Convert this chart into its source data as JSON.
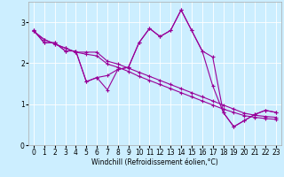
{
  "xlabel": "Windchill (Refroidissement éolien,°C)",
  "background_color": "#cceeff",
  "line_color": "#990099",
  "x": [
    0,
    1,
    2,
    3,
    4,
    5,
    6,
    7,
    8,
    9,
    10,
    11,
    12,
    13,
    14,
    15,
    16,
    17,
    18,
    19,
    20,
    21,
    22,
    23
  ],
  "series": [
    [
      2.8,
      2.5,
      2.5,
      2.3,
      2.3,
      1.55,
      1.65,
      1.35,
      1.85,
      1.9,
      2.5,
      2.85,
      2.65,
      2.8,
      3.3,
      2.8,
      2.3,
      2.15,
      0.8,
      0.45,
      0.6,
      0.75,
      0.85,
      0.8
    ],
    [
      2.8,
      2.5,
      2.5,
      2.3,
      2.3,
      1.55,
      1.65,
      1.7,
      1.85,
      1.9,
      2.5,
      2.85,
      2.65,
      2.8,
      3.3,
      2.8,
      2.3,
      1.45,
      0.8,
      0.45,
      0.6,
      0.75,
      0.85,
      0.8
    ],
    [
      2.78,
      2.58,
      2.47,
      2.37,
      2.27,
      2.27,
      2.27,
      2.05,
      1.98,
      1.88,
      1.78,
      1.68,
      1.58,
      1.48,
      1.38,
      1.28,
      1.18,
      1.08,
      0.98,
      0.88,
      0.78,
      0.73,
      0.7,
      0.68
    ],
    [
      2.78,
      2.58,
      2.47,
      2.37,
      2.27,
      2.22,
      2.18,
      1.98,
      1.9,
      1.8,
      1.68,
      1.58,
      1.48,
      1.38,
      1.28,
      1.18,
      1.08,
      0.98,
      0.88,
      0.8,
      0.72,
      0.68,
      0.65,
      0.63
    ]
  ],
  "ylim": [
    0,
    3.5
  ],
  "xlim": [
    -0.5,
    23.5
  ],
  "yticks": [
    0,
    1,
    2,
    3
  ],
  "xticks": [
    0,
    1,
    2,
    3,
    4,
    5,
    6,
    7,
    8,
    9,
    10,
    11,
    12,
    13,
    14,
    15,
    16,
    17,
    18,
    19,
    20,
    21,
    22,
    23
  ],
  "tick_fontsize": 5.5,
  "label_fontsize": 5.5
}
